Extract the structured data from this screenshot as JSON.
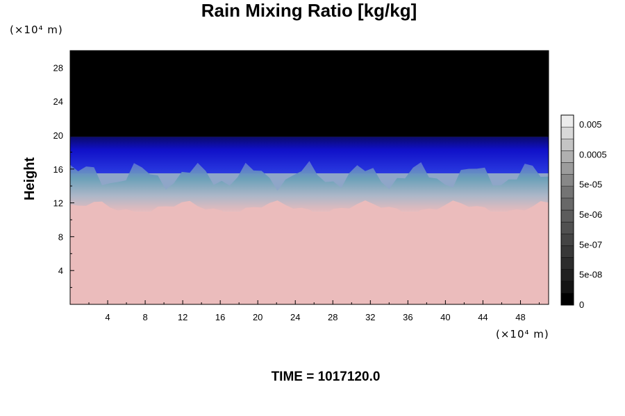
{
  "chart_data": {
    "type": "heatmap",
    "title": "Rain Mixing Ratio [kg/kg]",
    "ylabel": "Height",
    "x_unit_label": "(×10⁴ m)",
    "y_unit_label": "(×10⁴ m)",
    "xlim": [
      0,
      51
    ],
    "ylim": [
      0,
      30
    ],
    "x_ticks": [
      4,
      8,
      12,
      16,
      20,
      24,
      28,
      32,
      36,
      40,
      44,
      48
    ],
    "x_tick_labels": [
      "4",
      "8",
      "12",
      "16",
      "20",
      "24",
      "28",
      "32",
      "36",
      "40",
      "44",
      "48"
    ],
    "y_ticks": [
      4,
      8,
      12,
      16,
      20,
      24,
      28
    ],
    "y_tick_labels": [
      "4",
      "8",
      "12",
      "16",
      "20",
      "24",
      "28"
    ],
    "colorbar": {
      "labels": [
        "0.005",
        "0.0005",
        "5e-05",
        "5e-06",
        "5e-07",
        "5e-08",
        "0"
      ],
      "levels": 16,
      "colors": [
        "#000000",
        "#141414",
        "#202020",
        "#2c2c2c",
        "#383838",
        "#444444",
        "#505050",
        "#5c5c5c",
        "#686868",
        "#747474",
        "#888888",
        "#9c9c9c",
        "#b0b0b0",
        "#c4c4c4",
        "#d8d8d8",
        "#ececec"
      ]
    },
    "field_layers": [
      {
        "name": "upper-region",
        "y_from": 19.8,
        "y_to": 30,
        "color": "#000000"
      },
      {
        "name": "dense-band",
        "y_from": 15.5,
        "y_to": 19.8,
        "color": "#1212c8"
      },
      {
        "name": "turbulent-band",
        "y_from": 11,
        "y_to": 15.5,
        "color": "#8fa6c8"
      },
      {
        "name": "lower-region",
        "y_from": 0,
        "y_to": 11,
        "color": "#ebbcbc"
      }
    ],
    "grid": false
  },
  "footer": {
    "time_label": "TIME = 1017120.0"
  }
}
